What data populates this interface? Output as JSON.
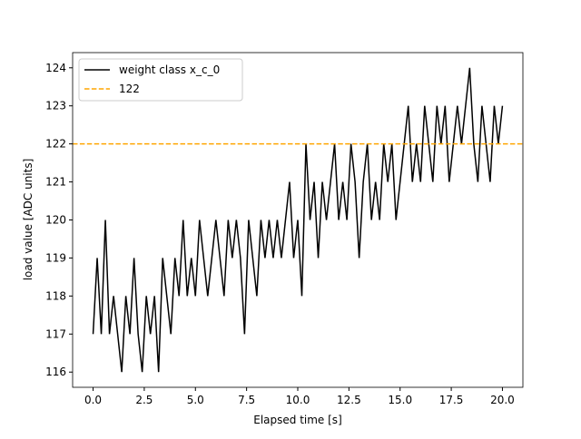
{
  "chart_data": {
    "type": "line",
    "xlabel": "Elapsed time [s]",
    "ylabel": "load value [ADC units]",
    "x": [
      0,
      0.2,
      0.4,
      0.6,
      0.8,
      1,
      1.2,
      1.4,
      1.6,
      1.8,
      2,
      2.2,
      2.4,
      2.6,
      2.8,
      3,
      3.2,
      3.4,
      3.6,
      3.8,
      4,
      4.2,
      4.4,
      4.6,
      4.8,
      5,
      5.2,
      5.4,
      5.6,
      5.8,
      6,
      6.2,
      6.4,
      6.6,
      6.8,
      7,
      7.2,
      7.4,
      7.6,
      7.8,
      8,
      8.2,
      8.4,
      8.6,
      8.8,
      9,
      9.2,
      9.4,
      9.6,
      9.8,
      10,
      10.2,
      10.4,
      10.6,
      10.8,
      11,
      11.2,
      11.4,
      11.6,
      11.8,
      12,
      12.2,
      12.4,
      12.6,
      12.8,
      13,
      13.2,
      13.4,
      13.6,
      13.8,
      14,
      14.2,
      14.4,
      14.6,
      14.8,
      15,
      15.2,
      15.4,
      15.6,
      15.8,
      16,
      16.2,
      16.4,
      16.6,
      16.8,
      17,
      17.2,
      17.4,
      17.6,
      17.8,
      18,
      18.2,
      18.4,
      18.6,
      18.8,
      19,
      19.2,
      19.4,
      19.6,
      19.8,
      20
    ],
    "series": [
      {
        "name": "weight class x_c_0",
        "color": "#000000",
        "values": [
          117,
          119,
          117,
          120,
          117,
          118,
          117,
          116,
          118,
          117,
          119,
          117,
          116,
          118,
          117,
          118,
          116,
          119,
          118,
          117,
          119,
          118,
          120,
          118,
          119,
          118,
          120,
          119,
          118,
          119,
          120,
          119,
          118,
          120,
          119,
          120,
          119,
          117,
          120,
          119,
          118,
          120,
          119,
          120,
          119,
          120,
          119,
          120,
          121,
          119,
          120,
          118,
          122,
          120,
          121,
          119,
          121,
          120,
          121,
          122,
          120,
          121,
          120,
          122,
          121,
          119,
          121,
          122,
          120,
          121,
          120,
          122,
          121,
          122,
          120,
          121,
          122,
          123,
          121,
          122,
          121,
          123,
          122,
          121,
          123,
          122,
          123,
          121,
          122,
          123,
          122,
          123,
          124,
          122,
          121,
          123,
          122,
          121,
          123,
          122,
          123
        ]
      }
    ],
    "hline": {
      "name": "122",
      "value": 122,
      "color": "#ffa500"
    },
    "xlim": [
      -1,
      21
    ],
    "ylim": [
      115.6,
      124.4
    ],
    "xticks": [
      {
        "value": 0,
        "label": "0.0"
      },
      {
        "value": 2.5,
        "label": "2.5"
      },
      {
        "value": 5,
        "label": "5.0"
      },
      {
        "value": 7.5,
        "label": "7.5"
      },
      {
        "value": 10,
        "label": "10.0"
      },
      {
        "value": 12.5,
        "label": "12.5"
      },
      {
        "value": 15,
        "label": "15.0"
      },
      {
        "value": 17.5,
        "label": "17.5"
      },
      {
        "value": 20,
        "label": "20.0"
      }
    ],
    "yticks": [
      116,
      117,
      118,
      119,
      120,
      121,
      122,
      123,
      124
    ],
    "legend": "upper left"
  }
}
